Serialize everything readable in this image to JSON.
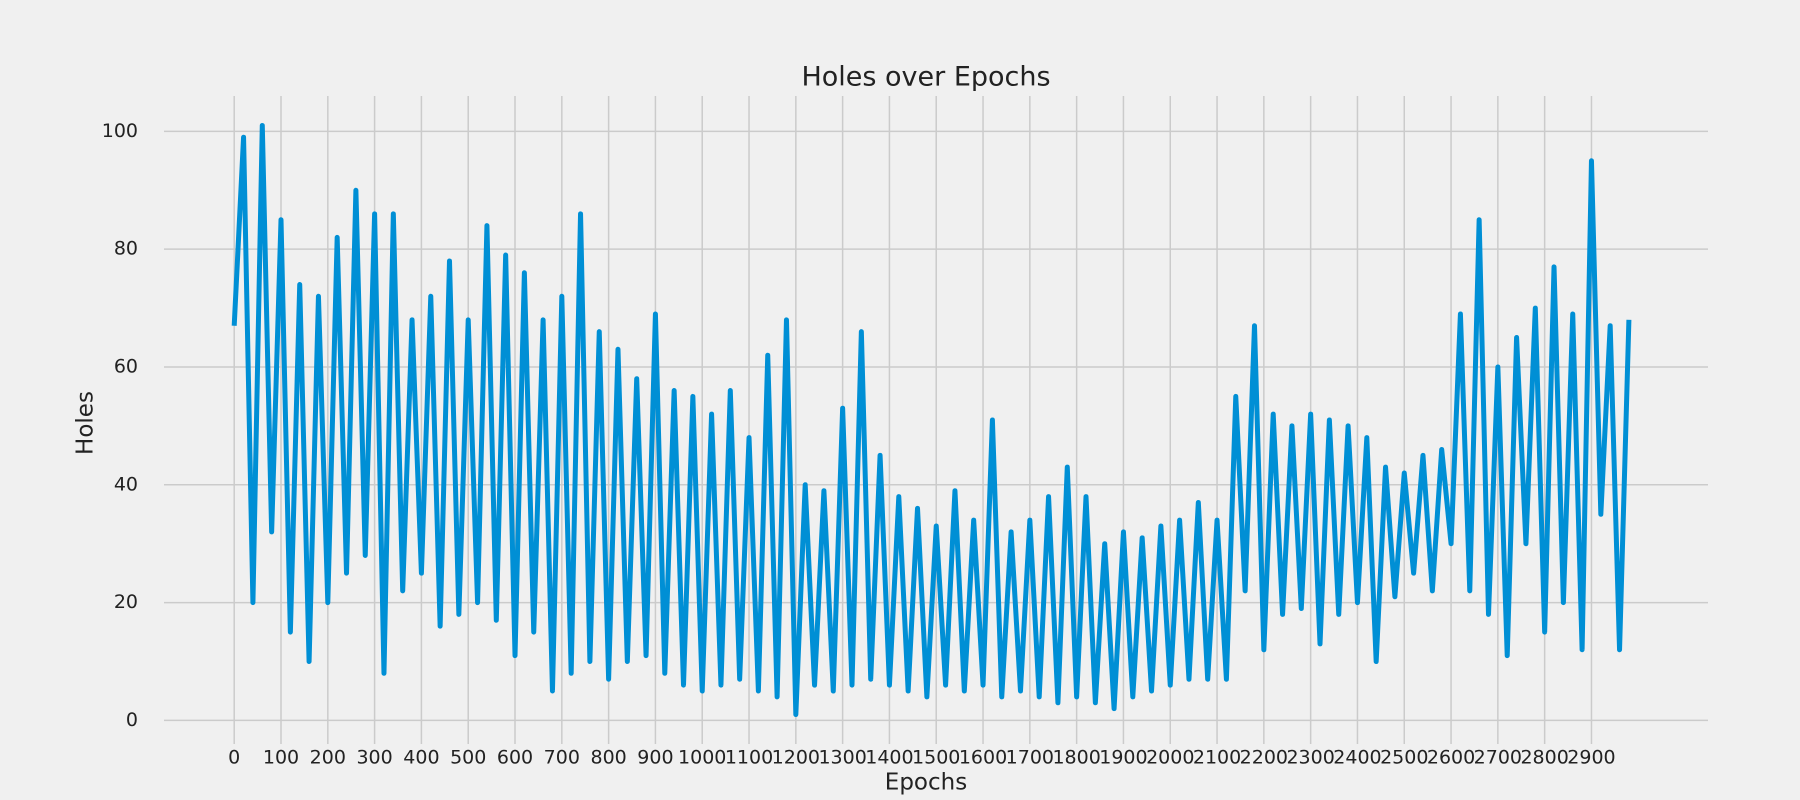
{
  "chart_data": {
    "type": "line",
    "title": "Holes over Epochs",
    "x_label": "Epochs",
    "y_label": "Holes",
    "x": [
      0,
      20,
      40,
      60,
      80,
      100,
      120,
      140,
      160,
      180,
      200,
      220,
      240,
      260,
      280,
      300,
      320,
      340,
      360,
      380,
      400,
      420,
      440,
      460,
      480,
      500,
      520,
      540,
      560,
      580,
      600,
      620,
      640,
      660,
      680,
      700,
      720,
      740,
      760,
      780,
      800,
      820,
      840,
      860,
      880,
      900,
      920,
      940,
      960,
      980,
      1000,
      1020,
      1040,
      1060,
      1080,
      1100,
      1120,
      1140,
      1160,
      1180,
      1200,
      1220,
      1240,
      1260,
      1280,
      1300,
      1320,
      1340,
      1360,
      1380,
      1400,
      1420,
      1440,
      1460,
      1480,
      1500,
      1520,
      1540,
      1560,
      1580,
      1600,
      1620,
      1640,
      1660,
      1680,
      1700,
      1720,
      1740,
      1760,
      1780,
      1800,
      1820,
      1840,
      1860,
      1880,
      1900,
      1920,
      1940,
      1960,
      1980,
      2000,
      2020,
      2040,
      2060,
      2080,
      2100,
      2120,
      2140,
      2160,
      2180,
      2200,
      2220,
      2240,
      2260,
      2280,
      2300,
      2320,
      2340,
      2360,
      2380,
      2400,
      2420,
      2440,
      2460,
      2480,
      2500,
      2520,
      2540,
      2560,
      2580,
      2600,
      2620,
      2640,
      2660,
      2680,
      2700,
      2720,
      2740,
      2760,
      2780,
      2800,
      2820,
      2840,
      2860,
      2880,
      2900,
      2920,
      2940,
      2960,
      2980
    ],
    "values": [
      67,
      99,
      20,
      101,
      32,
      85,
      15,
      74,
      10,
      72,
      20,
      82,
      25,
      90,
      28,
      86,
      8,
      86,
      22,
      68,
      25,
      72,
      16,
      78,
      18,
      68,
      20,
      84,
      17,
      79,
      11,
      76,
      15,
      68,
      5,
      72,
      8,
      86,
      10,
      66,
      7,
      63,
      10,
      58,
      11,
      69,
      8,
      56,
      6,
      55,
      5,
      52,
      6,
      56,
      7,
      48,
      5,
      62,
      4,
      68,
      1,
      40,
      6,
      39,
      5,
      53,
      6,
      66,
      7,
      45,
      6,
      38,
      5,
      36,
      4,
      33,
      6,
      39,
      5,
      34,
      6,
      51,
      4,
      32,
      5,
      34,
      4,
      38,
      3,
      43,
      4,
      38,
      3,
      30,
      2,
      32,
      4,
      31,
      5,
      33,
      6,
      34,
      7,
      37,
      7,
      34,
      7,
      55,
      22,
      67,
      12,
      52,
      18,
      50,
      19,
      52,
      13,
      51,
      18,
      50,
      20,
      48,
      10,
      43,
      21,
      42,
      25,
      45,
      22,
      46,
      30,
      69,
      22,
      85,
      18,
      60,
      11,
      65,
      30,
      70,
      15,
      77,
      20,
      69,
      12,
      95,
      35,
      67,
      12,
      68
    ],
    "color": "#008fd5",
    "xlim": [
      -150,
      3149
    ],
    "ylim": [
      -4,
      106
    ],
    "xticks": [
      0,
      100,
      200,
      300,
      400,
      500,
      600,
      700,
      800,
      900,
      1000,
      1100,
      1200,
      1300,
      1400,
      1500,
      1600,
      1700,
      1800,
      1900,
      2000,
      2100,
      2200,
      2300,
      2400,
      2500,
      2600,
      2700,
      2800,
      2900
    ],
    "yticks": [
      0,
      20,
      40,
      60,
      80,
      100
    ],
    "grid": true
  }
}
